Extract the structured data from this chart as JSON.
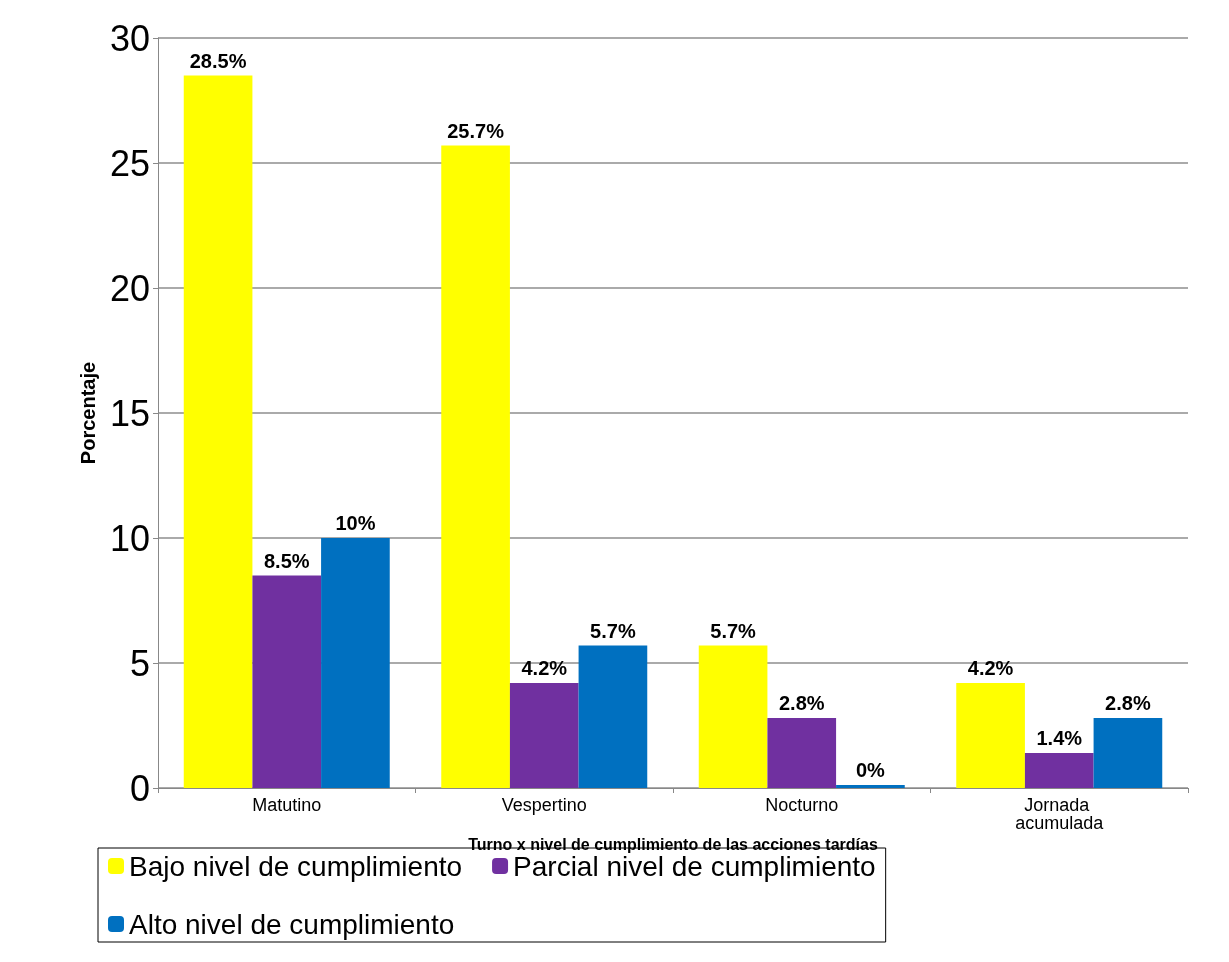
{
  "chart_data": {
    "type": "bar",
    "xlabel": "Turno x nivel de cumplimiento de las acciones tardías",
    "ylabel": "Porcentaje",
    "categories": [
      "Matutino",
      "Vespertino",
      "Nocturno",
      "Jornada acumulada"
    ],
    "series": [
      {
        "name": "Bajo nivel de cumplimiento",
        "color": "#ffff00",
        "values": [
          28.5,
          25.7,
          5.7,
          4.2
        ],
        "value_labels": [
          "28.5%",
          "25.7%",
          "5.7%",
          "4.2%"
        ]
      },
      {
        "name": "Parcial nivel de cumplimiento",
        "color": "#7030a0",
        "values": [
          8.5,
          4.2,
          2.8,
          1.4
        ],
        "value_labels": [
          "8.5%",
          "4.2%",
          "2.8%",
          "1.4%"
        ]
      },
      {
        "name": "Alto nivel de cumplimiento",
        "color": "#0070c0",
        "values": [
          10,
          5.7,
          0,
          2.8
        ],
        "value_labels": [
          "10%",
          "5.7%",
          "0%",
          "2.8%"
        ]
      }
    ],
    "ylim": [
      0,
      30
    ],
    "yticks": [
      0,
      5,
      10,
      15,
      20,
      25,
      30
    ],
    "grid": "y",
    "legend": "bottom"
  }
}
